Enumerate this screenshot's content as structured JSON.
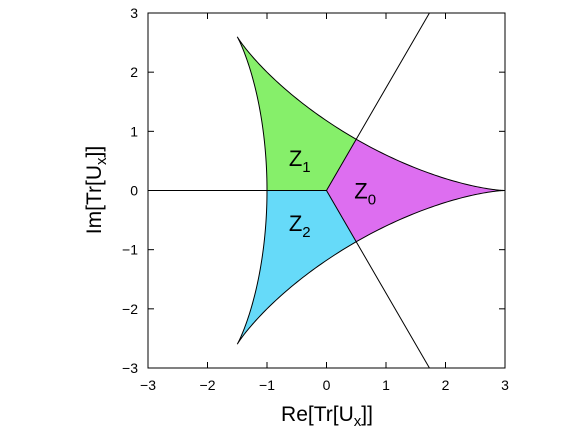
{
  "chart_data": {
    "type": "area",
    "title": "",
    "xlabel": {
      "main": "Re[Tr[U",
      "sub": "x",
      "tail": "]]"
    },
    "ylabel": {
      "main": "Im[Tr[U",
      "sub": "x",
      "tail": "]]"
    },
    "xlim": [
      -3,
      3
    ],
    "ylim": [
      -3,
      3
    ],
    "xticks": [
      -3,
      -2,
      -1,
      0,
      1,
      2,
      3
    ],
    "yticks": [
      -3,
      -2,
      -1,
      0,
      1,
      2,
      3
    ],
    "xtick_labels": [
      "−3",
      "−2",
      "−1",
      "0",
      "1",
      "2",
      "3"
    ],
    "ytick_labels": [
      "−3",
      "−2",
      "−1",
      "0",
      "1",
      "2",
      "3"
    ],
    "grid": false,
    "domain_boundary": "Tr[U] = 2 e^{iθ} + e^{-2iθ}, θ ∈ [0, 2π] (deltoid with cusps at 3, 3e^{±2πi/3})",
    "regions": [
      {
        "name": "Z",
        "sub": "0",
        "color": "#dd6ef0",
        "label_pos": [
          0.65,
          0.0
        ]
      },
      {
        "name": "Z",
        "sub": "1",
        "color": "#86ef6a",
        "label_pos": [
          -0.45,
          0.55
        ]
      },
      {
        "name": "Z",
        "sub": "2",
        "color": "#66daf9",
        "label_pos": [
          -0.45,
          -0.55
        ]
      }
    ],
    "boundary_lines": [
      {
        "from": [
          -3,
          0
        ],
        "to": [
          0,
          0
        ]
      },
      {
        "from": [
          0,
          0
        ],
        "to": [
          1.73,
          3
        ]
      },
      {
        "from": [
          0,
          0
        ],
        "to": [
          1.73,
          -3
        ]
      }
    ],
    "colors": {
      "Z0": "#dd6ef0",
      "Z1": "#86ef6a",
      "Z2": "#66daf9"
    }
  }
}
